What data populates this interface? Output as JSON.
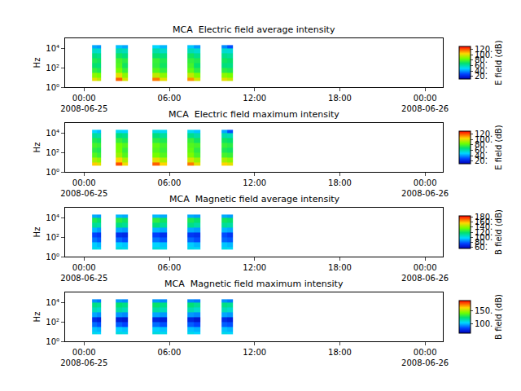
{
  "chart_data": [
    {
      "type": "heatmap",
      "title": "MCA  Electric field average intensity",
      "ylabel": "Hz",
      "log": "y",
      "x_edges": [
        "2008-06-25 00:34",
        "2008-06-25 00:54",
        "2008-06-25 01:12",
        "2008-06-25 02:14",
        "2008-06-25 02:40",
        "2008-06-25 03:05",
        "2008-06-25 04:48",
        "2008-06-25 05:18",
        "2008-06-25 05:50",
        "2008-06-25 07:16",
        "2008-06-25 07:42",
        "2008-06-25 08:10",
        "2008-06-25 09:40",
        "2008-06-25 10:04",
        "2008-06-25 10:28"
      ],
      "y_edges": [
        4,
        10,
        30,
        100,
        300,
        1000,
        3000,
        10000,
        20000
      ],
      "z": [
        [
          100,
          95,
          null,
          118,
          98,
          null,
          115,
          100,
          null,
          112,
          98,
          null,
          100,
          96
        ],
        [
          88,
          85,
          null,
          100,
          88,
          null,
          95,
          88,
          null,
          95,
          86,
          null,
          88,
          85
        ],
        [
          75,
          72,
          null,
          85,
          76,
          null,
          80,
          75,
          null,
          82,
          74,
          null,
          74,
          72
        ],
        [
          68,
          66,
          null,
          80,
          70,
          null,
          75,
          70,
          null,
          78,
          68,
          null,
          66,
          65
        ],
        [
          72,
          70,
          null,
          78,
          74,
          null,
          76,
          72,
          null,
          75,
          72,
          null,
          70,
          68
        ],
        [
          66,
          64,
          null,
          70,
          66,
          null,
          68,
          66,
          null,
          70,
          64,
          null,
          64,
          62
        ],
        [
          56,
          55,
          null,
          60,
          58,
          null,
          60,
          56,
          null,
          58,
          55,
          null,
          55,
          54
        ],
        [
          42,
          40,
          null,
          45,
          42,
          null,
          48,
          44,
          null,
          46,
          40,
          null,
          38,
          30
        ]
      ],
      "xlim": [
        "2008-06-24 22:40",
        "2008-06-26 01:15"
      ],
      "xticks": [
        {
          "value": "2008-06-25 00:00",
          "label": "00:00\n2008-06-25"
        },
        {
          "value": "2008-06-25 06:00",
          "label": "06:00"
        },
        {
          "value": "2008-06-25 12:00",
          "label": "12:00"
        },
        {
          "value": "2008-06-25 18:00",
          "label": "18:00"
        },
        {
          "value": "2008-06-26 00:00",
          "label": "00:00\n2008-06-26"
        }
      ],
      "ylim": [
        1,
        100000
      ],
      "yticks": [
        {
          "value": 1,
          "label": "10⁰"
        },
        {
          "value": 100,
          "label": "10²"
        },
        {
          "value": 10000,
          "label": "10⁴"
        }
      ],
      "colorbar_label": "E field (dB)",
      "colorbar_range": [
        10,
        130
      ],
      "colorbar_ticks": [
        {
          "value": 20,
          "label": "20."
        },
        {
          "value": 40,
          "label": "40."
        },
        {
          "value": 60,
          "label": "60."
        },
        {
          "value": 80,
          "label": "80."
        },
        {
          "value": 100,
          "label": "100."
        },
        {
          "value": 120,
          "label": "120."
        }
      ]
    },
    {
      "type": "heatmap",
      "title": "MCA  Electric field maximum intensity",
      "ylabel": "Hz",
      "log": "y",
      "x_edges": [
        "2008-06-25 00:34",
        "2008-06-25 00:54",
        "2008-06-25 01:12",
        "2008-06-25 02:14",
        "2008-06-25 02:40",
        "2008-06-25 03:05",
        "2008-06-25 04:48",
        "2008-06-25 05:18",
        "2008-06-25 05:50",
        "2008-06-25 07:16",
        "2008-06-25 07:42",
        "2008-06-25 08:10",
        "2008-06-25 09:40",
        "2008-06-25 10:04",
        "2008-06-25 10:28"
      ],
      "y_edges": [
        4,
        10,
        30,
        100,
        300,
        1000,
        3000,
        10000,
        20000
      ],
      "z": [
        [
          105,
          100,
          null,
          120,
          102,
          null,
          118,
          104,
          null,
          115,
          100,
          null,
          104,
          100
        ],
        [
          92,
          88,
          null,
          104,
          92,
          null,
          100,
          92,
          null,
          98,
          90,
          null,
          92,
          88
        ],
        [
          80,
          76,
          null,
          90,
          80,
          null,
          85,
          80,
          null,
          86,
          78,
          null,
          78,
          76
        ],
        [
          74,
          72,
          null,
          85,
          76,
          null,
          80,
          76,
          null,
          82,
          74,
          null,
          72,
          70
        ],
        [
          78,
          76,
          null,
          84,
          80,
          null,
          82,
          78,
          null,
          80,
          78,
          null,
          76,
          74
        ],
        [
          72,
          70,
          null,
          76,
          72,
          null,
          74,
          72,
          null,
          76,
          70,
          null,
          70,
          68
        ],
        [
          62,
          60,
          null,
          66,
          64,
          null,
          66,
          62,
          null,
          64,
          60,
          null,
          60,
          58
        ],
        [
          48,
          45,
          null,
          50,
          48,
          null,
          52,
          50,
          null,
          50,
          46,
          null,
          42,
          30
        ]
      ],
      "xlim": [
        "2008-06-24 22:40",
        "2008-06-26 01:15"
      ],
      "xticks": [
        {
          "value": "2008-06-25 00:00",
          "label": "00:00\n2008-06-25"
        },
        {
          "value": "2008-06-25 06:00",
          "label": "06:00"
        },
        {
          "value": "2008-06-25 12:00",
          "label": "12:00"
        },
        {
          "value": "2008-06-25 18:00",
          "label": "18:00"
        },
        {
          "value": "2008-06-26 00:00",
          "label": "00:00\n2008-06-26"
        }
      ],
      "ylim": [
        1,
        100000
      ],
      "yticks": [
        {
          "value": 1,
          "label": "10⁰"
        },
        {
          "value": 100,
          "label": "10²"
        },
        {
          "value": 10000,
          "label": "10⁴"
        }
      ],
      "colorbar_label": "E field (dB)",
      "colorbar_range": [
        10,
        130
      ],
      "colorbar_ticks": [
        {
          "value": 20,
          "label": "20."
        },
        {
          "value": 40,
          "label": "40."
        },
        {
          "value": 60,
          "label": "60."
        },
        {
          "value": 80,
          "label": "80."
        },
        {
          "value": 100,
          "label": "100."
        },
        {
          "value": 120,
          "label": "120."
        }
      ]
    },
    {
      "type": "heatmap",
      "title": "MCA  Magnetic field average intensity",
      "ylabel": "Hz",
      "log": "y",
      "x_edges": [
        "2008-06-25 00:34",
        "2008-06-25 00:54",
        "2008-06-25 01:12",
        "2008-06-25 02:14",
        "2008-06-25 02:40",
        "2008-06-25 03:05",
        "2008-06-25 04:48",
        "2008-06-25 05:18",
        "2008-06-25 05:50",
        "2008-06-25 07:16",
        "2008-06-25 07:42",
        "2008-06-25 08:10",
        "2008-06-25 09:40",
        "2008-06-25 10:04",
        "2008-06-25 10:28"
      ],
      "y_edges": [
        5,
        10,
        30,
        100,
        300,
        1000,
        3000,
        10000,
        20000
      ],
      "z": [
        [
          100,
          98,
          null,
          102,
          100,
          null,
          102,
          100,
          null,
          100,
          98,
          null,
          100,
          98
        ],
        [
          95,
          92,
          null,
          96,
          94,
          null,
          96,
          94,
          null,
          95,
          92,
          null,
          94,
          92
        ],
        [
          82,
          78,
          null,
          80,
          76,
          null,
          82,
          78,
          null,
          80,
          76,
          null,
          80,
          78
        ],
        [
          75,
          72,
          null,
          70,
          68,
          null,
          74,
          70,
          null,
          72,
          70,
          null,
          76,
          72
        ],
        [
          92,
          88,
          null,
          90,
          88,
          null,
          92,
          90,
          null,
          90,
          88,
          null,
          92,
          90
        ],
        [
          112,
          110,
          null,
          115,
          112,
          null,
          116,
          112,
          null,
          114,
          110,
          null,
          112,
          110
        ],
        [
          122,
          118,
          null,
          124,
          120,
          null,
          125,
          120,
          null,
          122,
          118,
          null,
          120,
          118
        ],
        [
          90,
          88,
          null,
          92,
          90,
          null,
          92,
          90,
          null,
          90,
          88,
          null,
          90,
          88
        ]
      ],
      "xlim": [
        "2008-06-24 22:40",
        "2008-06-26 01:15"
      ],
      "xticks": [
        {
          "value": "2008-06-25 00:00",
          "label": "00:00\n2008-06-25"
        },
        {
          "value": "2008-06-25 06:00",
          "label": "06:00"
        },
        {
          "value": "2008-06-25 12:00",
          "label": "12:00"
        },
        {
          "value": "2008-06-25 18:00",
          "label": "18:00"
        },
        {
          "value": "2008-06-26 00:00",
          "label": "00:00\n2008-06-26"
        }
      ],
      "ylim": [
        1,
        100000
      ],
      "yticks": [
        {
          "value": 1,
          "label": "10⁰"
        },
        {
          "value": 100,
          "label": "10²"
        },
        {
          "value": 10000,
          "label": "10⁴"
        }
      ],
      "colorbar_label": "B field (dB)",
      "colorbar_range": [
        55,
        185
      ],
      "colorbar_ticks": [
        {
          "value": 60,
          "label": "60."
        },
        {
          "value": 80,
          "label": "80."
        },
        {
          "value": 100,
          "label": "100."
        },
        {
          "value": 120,
          "label": "120."
        },
        {
          "value": 140,
          "label": "140."
        },
        {
          "value": 160,
          "label": "160."
        },
        {
          "value": 180,
          "label": "180."
        }
      ]
    },
    {
      "type": "heatmap",
      "title": "MCA  Magnetic field maximum intensity",
      "ylabel": "Hz",
      "log": "y",
      "x_edges": [
        "2008-06-25 00:34",
        "2008-06-25 00:54",
        "2008-06-25 01:12",
        "2008-06-25 02:14",
        "2008-06-25 02:40",
        "2008-06-25 03:05",
        "2008-06-25 04:48",
        "2008-06-25 05:18",
        "2008-06-25 05:50",
        "2008-06-25 07:16",
        "2008-06-25 07:42",
        "2008-06-25 08:10",
        "2008-06-25 09:40",
        "2008-06-25 10:04",
        "2008-06-25 10:28"
      ],
      "y_edges": [
        5,
        10,
        30,
        100,
        300,
        1000,
        3000,
        10000,
        20000
      ],
      "z": [
        [
          108,
          105,
          null,
          110,
          108,
          null,
          110,
          108,
          null,
          108,
          105,
          null,
          108,
          106
        ],
        [
          102,
          100,
          null,
          104,
          102,
          null,
          104,
          102,
          null,
          102,
          100,
          null,
          102,
          100
        ],
        [
          90,
          86,
          null,
          88,
          84,
          null,
          90,
          86,
          null,
          88,
          84,
          null,
          88,
          86
        ],
        [
          78,
          75,
          null,
          74,
          72,
          null,
          76,
          74,
          null,
          76,
          72,
          null,
          78,
          75
        ],
        [
          98,
          95,
          null,
          96,
          94,
          null,
          98,
          96,
          null,
          96,
          94,
          null,
          98,
          96
        ],
        [
          115,
          112,
          null,
          118,
          115,
          null,
          118,
          115,
          null,
          116,
          112,
          null,
          115,
          112
        ],
        [
          122,
          120,
          null,
          125,
          122,
          null,
          126,
          122,
          null,
          124,
          120,
          null,
          122,
          120
        ],
        [
          95,
          92,
          null,
          96,
          94,
          null,
          96,
          94,
          null,
          94,
          92,
          null,
          95,
          92
        ]
      ],
      "xlim": [
        "2008-06-24 22:40",
        "2008-06-26 01:15"
      ],
      "xticks": [
        {
          "value": "2008-06-25 00:00",
          "label": "00:00\n2008-06-25"
        },
        {
          "value": "2008-06-25 06:00",
          "label": "06:00"
        },
        {
          "value": "2008-06-25 12:00",
          "label": "12:00"
        },
        {
          "value": "2008-06-25 18:00",
          "label": "18:00"
        },
        {
          "value": "2008-06-26 00:00",
          "label": "00:00\n2008-06-26"
        }
      ],
      "ylim": [
        1,
        100000
      ],
      "yticks": [
        {
          "value": 1,
          "label": "10⁰"
        },
        {
          "value": 100,
          "label": "10²"
        },
        {
          "value": 10000,
          "label": "10⁴"
        }
      ],
      "colorbar_label": "B field (dB)",
      "colorbar_range": [
        65,
        190
      ],
      "colorbar_ticks": [
        {
          "value": 100,
          "label": "100."
        },
        {
          "value": 150,
          "label": "150."
        }
      ]
    }
  ]
}
